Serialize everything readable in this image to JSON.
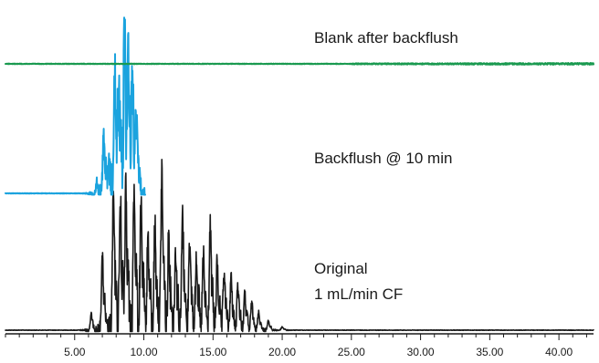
{
  "chart_data": {
    "type": "line",
    "title": "",
    "xlabel": "",
    "ylabel": "",
    "xlim": [
      0,
      42.5
    ],
    "x_ticks": [
      "5.00",
      "10.00",
      "15.00",
      "20.00",
      "25.00",
      "30.00",
      "35.00",
      "40.00"
    ],
    "x_tick_values": [
      5,
      10,
      15,
      20,
      25,
      30,
      35,
      40
    ],
    "minor_tick_step": 1,
    "grid": false,
    "legend": "none",
    "series": [
      {
        "key": "blank",
        "label_text": "Blank after backflush",
        "color": "#1a9a50",
        "x_range": [
          0,
          42.5
        ],
        "baseline_intensity": 0,
        "peaks": []
      },
      {
        "key": "backflush",
        "label_text": "Backflush @ 10 min",
        "color": "#1ba3de",
        "x_range": [
          0,
          10.1
        ],
        "baseline_intensity": 0,
        "peaks": [
          [
            6.6,
            0.06
          ],
          [
            7.1,
            0.32
          ],
          [
            7.5,
            0.14
          ],
          [
            7.9,
            0.62
          ],
          [
            8.2,
            0.55
          ],
          [
            8.6,
            0.95
          ],
          [
            8.9,
            0.72
          ],
          [
            9.2,
            0.58
          ],
          [
            9.5,
            0.35
          ]
        ]
      },
      {
        "key": "original",
        "label_text_lines": [
          "Original",
          "1 mL/min CF"
        ],
        "color": "#1a1a1a",
        "x_range": [
          0,
          42.5
        ],
        "baseline_intensity": 0,
        "peaks": [
          [
            6.2,
            0.07
          ],
          [
            7.0,
            0.33
          ],
          [
            7.8,
            0.6
          ],
          [
            8.3,
            0.58
          ],
          [
            8.7,
            0.7
          ],
          [
            9.3,
            0.66
          ],
          [
            9.8,
            0.55
          ],
          [
            10.3,
            0.43
          ],
          [
            10.8,
            0.47
          ],
          [
            11.3,
            0.72
          ],
          [
            11.8,
            0.45
          ],
          [
            12.3,
            0.38
          ],
          [
            12.8,
            0.52
          ],
          [
            13.3,
            0.42
          ],
          [
            13.8,
            0.36
          ],
          [
            14.3,
            0.33
          ],
          [
            14.8,
            0.46
          ],
          [
            15.3,
            0.3
          ],
          [
            15.8,
            0.27
          ],
          [
            16.3,
            0.24
          ],
          [
            16.8,
            0.21
          ],
          [
            17.3,
            0.16
          ],
          [
            17.8,
            0.12
          ],
          [
            18.3,
            0.08
          ],
          [
            19.0,
            0.04
          ],
          [
            20.0,
            0.015
          ]
        ]
      }
    ]
  }
}
